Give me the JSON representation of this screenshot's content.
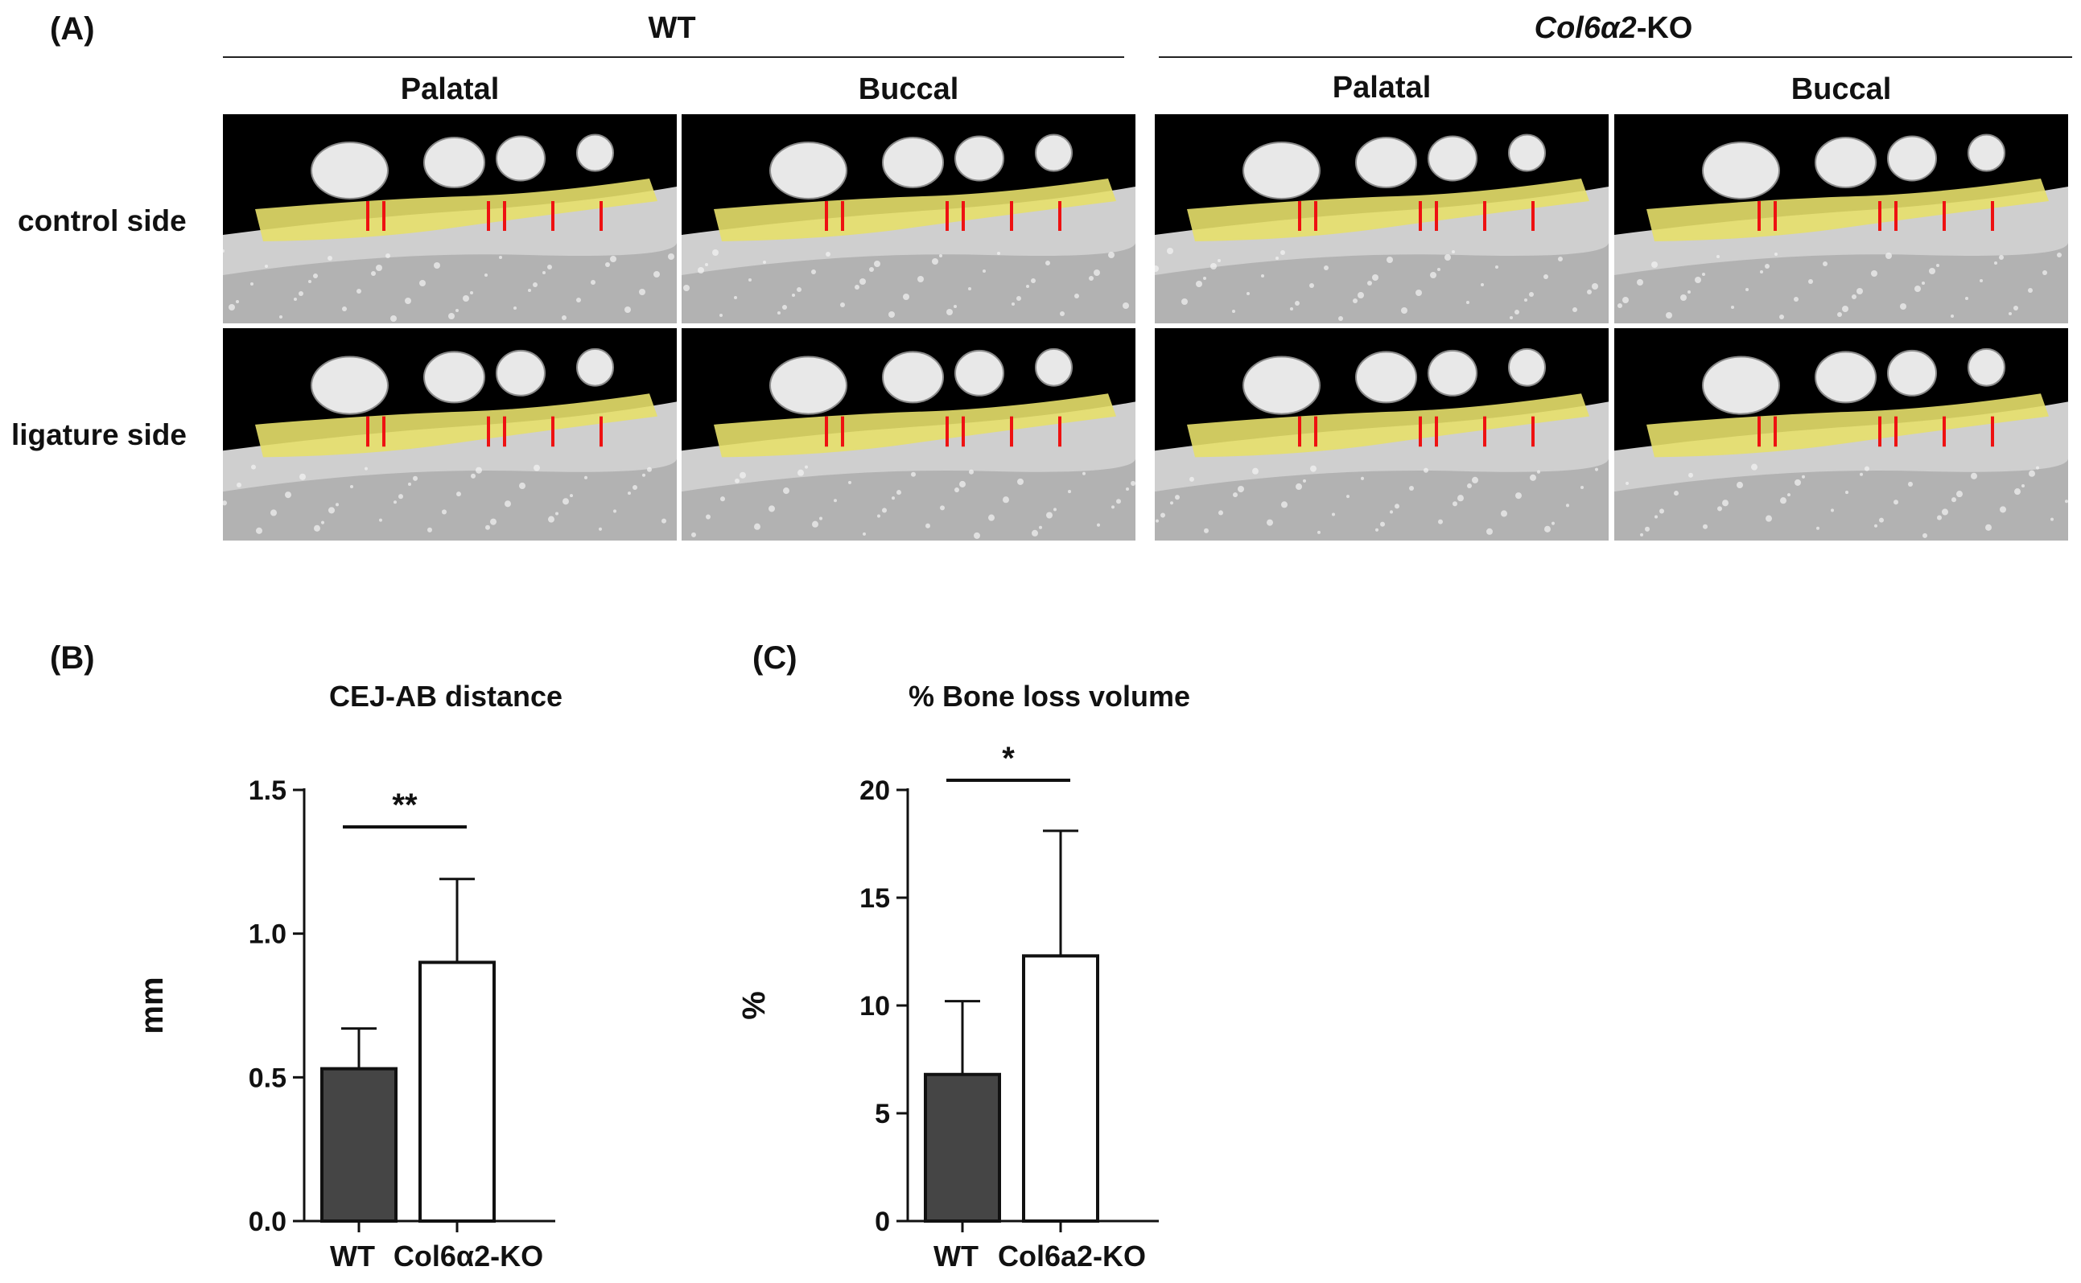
{
  "panels": {
    "a": {
      "label": "(A)",
      "groups": [
        {
          "name_plain": "WT",
          "name_italic": "",
          "name_suffix": ""
        },
        {
          "name_plain": "",
          "name_italic": "Col6α2",
          "name_suffix": "-KO"
        }
      ],
      "columns": [
        "Palatal",
        "Buccal",
        "Palatal",
        "Buccal"
      ],
      "rows": [
        "control side",
        "ligature side"
      ]
    },
    "b": {
      "label": "(B)"
    },
    "c": {
      "label": "(C)"
    }
  },
  "chart_data": [
    {
      "type": "bar",
      "title": "CEJ-AB distance",
      "ylabel": "mm",
      "categories": [
        "WT",
        "Col6α2-KO"
      ],
      "values": [
        0.53,
        0.9
      ],
      "errors": [
        0.14,
        0.29
      ],
      "ylim": [
        0,
        1.5
      ],
      "yticks": [
        "0.0",
        "0.5",
        "1.0",
        "1.5"
      ],
      "significance": "**",
      "bar_fills": [
        "#454545",
        "#ffffff"
      ]
    },
    {
      "type": "bar",
      "title": "% Bone loss volume",
      "ylabel": "%",
      "categories": [
        "WT",
        "Col6a2-KO"
      ],
      "values": [
        6.8,
        12.3
      ],
      "errors": [
        3.4,
        5.8
      ],
      "ylim": [
        0,
        20
      ],
      "yticks": [
        "0",
        "5",
        "10",
        "15",
        "20"
      ],
      "significance": "*",
      "bar_fills": [
        "#454545",
        "#ffffff"
      ]
    }
  ]
}
